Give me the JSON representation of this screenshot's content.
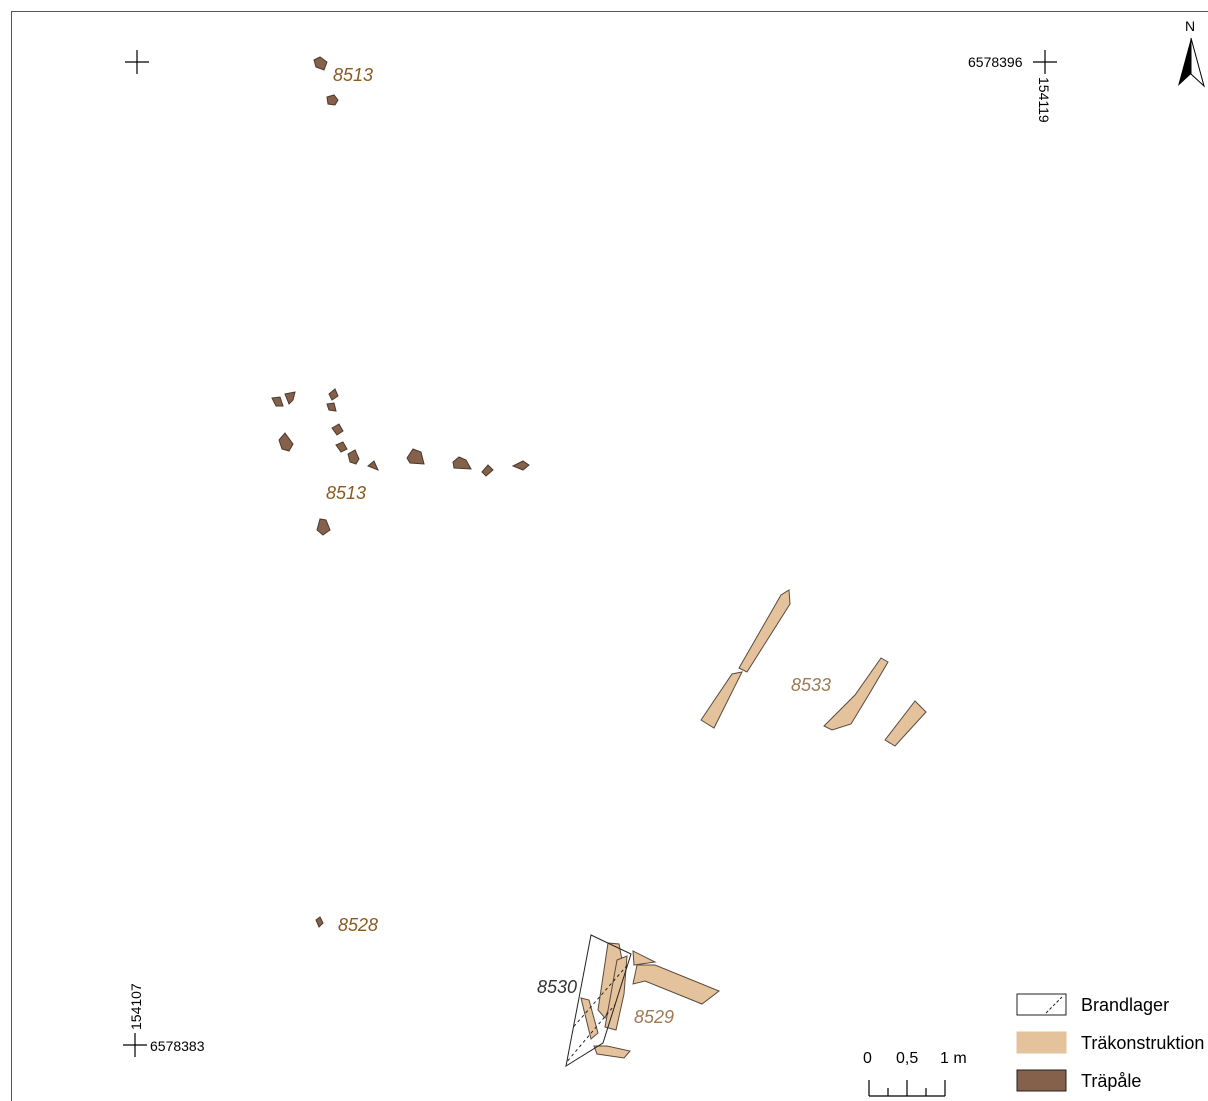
{
  "colors": {
    "trapale_fill": "#85604a",
    "trakonstruktion_fill": "#e3c29c",
    "label_brown": "#8a5a1e",
    "label_tan": "#9e7a55",
    "label_dark": "#333333",
    "outline": "#4a3a2e",
    "frame": "#555555"
  },
  "north": {
    "letter": "N",
    "icon": "north-arrow-icon"
  },
  "coordinates": {
    "top_right_n": "6578396",
    "top_right_e": "154119",
    "bottom_left_n": "6578383",
    "bottom_left_e": "154107"
  },
  "features": {
    "f8513_top": "8513",
    "f8513_mid": "8513",
    "f8528": "8528",
    "f8533": "8533",
    "f8530": "8530",
    "f8529": "8529"
  },
  "legend": {
    "brandlager": "Brandlager",
    "trakonstruktion": "Träkonstruktion",
    "trapale": "Träpåle"
  },
  "scale": {
    "tick0": "0",
    "tick_half": "0,5",
    "tick_one": "1 m"
  }
}
